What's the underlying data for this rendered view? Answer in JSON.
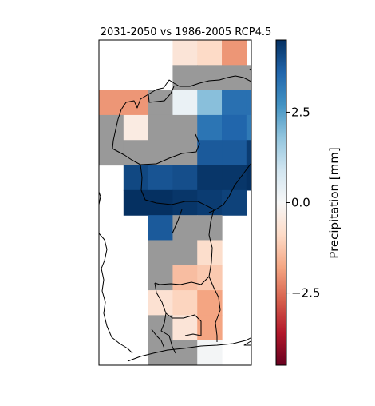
{
  "chart_data": {
    "type": "heatmap",
    "title": "2031-2050 vs 1986-2005 RCP4.5",
    "colorbar": {
      "label": "Precipitation [mm]",
      "range": [
        -4.5,
        4.5
      ],
      "ticks": [
        2.5,
        0.0,
        -2.5
      ],
      "tick_labels": [
        "2.5",
        "0.0",
        "−2.5"
      ],
      "colormap": "RdBu",
      "colors": [
        "#67001f",
        "#b2182b",
        "#d6604d",
        "#f4a582",
        "#fddbc7",
        "#f7f7f7",
        "#d1e5f0",
        "#92c5de",
        "#4393c3",
        "#2166ac",
        "#053061"
      ]
    },
    "masked_color": "#999999",
    "columns": 7,
    "rows": 13,
    "cells": [
      {
        "col": 3,
        "row": 0,
        "value": -0.6
      },
      {
        "col": 4,
        "row": 0,
        "value": -0.9
      },
      {
        "col": 5,
        "row": 0,
        "value": -2.0
      },
      {
        "col": 3,
        "row": 1,
        "value": null
      },
      {
        "col": 4,
        "row": 1,
        "value": null
      },
      {
        "col": 5,
        "row": 1,
        "value": null
      },
      {
        "col": 6,
        "row": 1,
        "value": null
      },
      {
        "col": 0,
        "row": 2,
        "value": -2.0
      },
      {
        "col": 1,
        "row": 2,
        "value": -2.0
      },
      {
        "col": 2,
        "row": 2,
        "value": null
      },
      {
        "col": 3,
        "row": 2,
        "value": 0.3
      },
      {
        "col": 4,
        "row": 2,
        "value": 1.9
      },
      {
        "col": 5,
        "row": 2,
        "value": 3.4
      },
      {
        "col": 6,
        "row": 2,
        "value": 3.4
      },
      {
        "col": 0,
        "row": 3,
        "value": null
      },
      {
        "col": 1,
        "row": 3,
        "value": -0.4
      },
      {
        "col": 2,
        "row": 3,
        "value": null
      },
      {
        "col": 3,
        "row": 3,
        "value": null
      },
      {
        "col": 4,
        "row": 3,
        "value": 3.3
      },
      {
        "col": 5,
        "row": 3,
        "value": 3.6
      },
      {
        "col": 6,
        "row": 3,
        "value": 3.2
      },
      {
        "col": 0,
        "row": 4,
        "value": null
      },
      {
        "col": 1,
        "row": 4,
        "value": null
      },
      {
        "col": 2,
        "row": 4,
        "value": null
      },
      {
        "col": 3,
        "row": 4,
        "value": null
      },
      {
        "col": 4,
        "row": 4,
        "value": 3.8
      },
      {
        "col": 5,
        "row": 4,
        "value": 3.8
      },
      {
        "col": 6,
        "row": 4,
        "value": 4.3
      },
      {
        "col": 1,
        "row": 5,
        "value": 4.1
      },
      {
        "col": 2,
        "row": 5,
        "value": 3.9
      },
      {
        "col": 3,
        "row": 5,
        "value": 4.0
      },
      {
        "col": 4,
        "row": 5,
        "value": 4.4
      },
      {
        "col": 5,
        "row": 5,
        "value": 4.4
      },
      {
        "col": 6,
        "row": 5,
        "value": 4.5
      },
      {
        "col": 1,
        "row": 6,
        "value": 4.5
      },
      {
        "col": 2,
        "row": 6,
        "value": 4.5
      },
      {
        "col": 3,
        "row": 6,
        "value": 4.4
      },
      {
        "col": 4,
        "row": 6,
        "value": 4.3
      },
      {
        "col": 5,
        "row": 6,
        "value": 4.2
      },
      {
        "col": 2,
        "row": 7,
        "value": 3.8
      },
      {
        "col": 3,
        "row": 7,
        "value": null
      },
      {
        "col": 4,
        "row": 7,
        "value": null
      },
      {
        "col": 2,
        "row": 8,
        "value": null
      },
      {
        "col": 3,
        "row": 8,
        "value": null
      },
      {
        "col": 4,
        "row": 8,
        "value": -0.8
      },
      {
        "col": 2,
        "row": 9,
        "value": null
      },
      {
        "col": 3,
        "row": 9,
        "value": -1.4
      },
      {
        "col": 4,
        "row": 9,
        "value": -1.2
      },
      {
        "col": 2,
        "row": 10,
        "value": -0.7
      },
      {
        "col": 3,
        "row": 10,
        "value": -1.0
      },
      {
        "col": 4,
        "row": 10,
        "value": -1.8
      },
      {
        "col": 2,
        "row": 11,
        "value": null
      },
      {
        "col": 3,
        "row": 11,
        "value": -0.6
      },
      {
        "col": 4,
        "row": 11,
        "value": -1.8
      },
      {
        "col": 2,
        "row": 12,
        "value": null
      },
      {
        "col": 3,
        "row": 12,
        "value": null
      },
      {
        "col": 4,
        "row": 12,
        "value": 0.1
      }
    ]
  }
}
